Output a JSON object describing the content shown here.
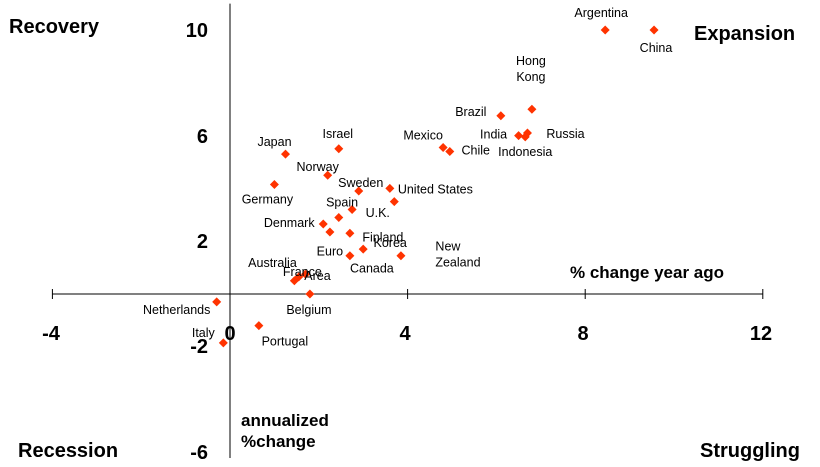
{
  "chart_data": {
    "type": "scatter",
    "xlim": [
      -4,
      12
    ],
    "ylim": [
      -6,
      11
    ],
    "x_ticks": [
      "-4",
      "0",
      "4",
      "8",
      "12"
    ],
    "y_ticks": [
      "10",
      "6",
      "2",
      "-2",
      "-6"
    ],
    "x_axis_title": "% change year ago",
    "y_axis_title": [
      "annualized",
      "%change"
    ],
    "quadrants": {
      "top_left": "Recovery",
      "top_right": "Expansion",
      "bottom_left": "Recession",
      "bottom_right": "Struggling"
    },
    "marker_color": "#ff3300",
    "highlight_label_color": "#1f2fa8",
    "points": [
      {
        "label": [
          "Argentina"
        ],
        "x": 8.45,
        "y": 10.0
      },
      {
        "label": [
          "China"
        ],
        "x": 9.55,
        "y": 10.0
      },
      {
        "label": [
          "Hong",
          "Kong"
        ],
        "x": 6.8,
        "y": 7.0
      },
      {
        "label": [
          "Brazil"
        ],
        "x": 6.1,
        "y": 6.75
      },
      {
        "label": [
          "Russia"
        ],
        "x": 6.7,
        "y": 6.1
      },
      {
        "label": [
          "India"
        ],
        "x": 6.5,
        "y": 6.0
      },
      {
        "label": [
          "Indonesia"
        ],
        "x": 6.65,
        "y": 5.95
      },
      {
        "label": [
          "Mexico"
        ],
        "x": 4.8,
        "y": 5.55
      },
      {
        "label": [
          "Chile"
        ],
        "x": 4.95,
        "y": 5.4
      },
      {
        "label": [
          "Japan"
        ],
        "x": 1.25,
        "y": 5.3
      },
      {
        "label": [
          "Israel"
        ],
        "x": 2.45,
        "y": 5.5
      },
      {
        "label": [
          "Norway"
        ],
        "x": 2.2,
        "y": 4.5
      },
      {
        "label": [
          "Germany"
        ],
        "x": 1.0,
        "y": 4.15
      },
      {
        "label": [
          "Sweden"
        ],
        "x": 2.9,
        "y": 3.9
      },
      {
        "label": [
          "United States"
        ],
        "x": 3.6,
        "y": 4.0,
        "highlight": true
      },
      {
        "label": [
          "U.K."
        ],
        "x": 3.7,
        "y": 3.5
      },
      {
        "label": [
          "Spain"
        ],
        "x": 2.75,
        "y": 3.2
      },
      {
        "label": [
          "Denmark"
        ],
        "x": 2.45,
        "y": 2.9
      },
      {
        "label": [
          "Denmark"
        ],
        "x": 2.1,
        "y": 2.65
      },
      {
        "label": [
          "Finland"
        ],
        "x": 2.25,
        "y": 2.35
      },
      {
        "label": [
          "Finland"
        ],
        "x": 2.7,
        "y": 2.3
      },
      {
        "label": [
          "Korea"
        ],
        "x": 3.0,
        "y": 1.7
      },
      {
        "label": [
          "Euro",
          "Area"
        ],
        "x": 2.7,
        "y": 1.45
      },
      {
        "label": [
          "New",
          "Zealand"
        ],
        "x": 3.85,
        "y": 1.45
      },
      {
        "label": [
          "Australia"
        ],
        "x": 1.7,
        "y": 0.75
      },
      {
        "label": [
          "Euro",
          "Area"
        ],
        "x": 1.55,
        "y": 0.65
      },
      {
        "label": [
          "France"
        ],
        "x": 1.45,
        "y": 0.5
      },
      {
        "label": [
          "Belgium"
        ],
        "x": 1.8,
        "y": 0.0
      },
      {
        "label": [
          "Netherlands"
        ],
        "x": -0.3,
        "y": -0.3
      },
      {
        "label": [
          "Portugal"
        ],
        "x": 0.65,
        "y": -1.2
      },
      {
        "label": [
          "Italy"
        ],
        "x": -0.15,
        "y": -1.85
      }
    ],
    "labels": [
      {
        "text": "Argentina",
        "x": 8.45,
        "y": 10.0
      },
      {
        "text": "China",
        "x": 9.55,
        "y": 10.0
      },
      {
        "text": "Hong",
        "x": 6.8,
        "y": 7.0
      },
      {
        "text": "Kong",
        "x": 6.8,
        "y": 7.0
      },
      {
        "text": "Brazil",
        "x": 6.1,
        "y": 6.75
      },
      {
        "text": "Russia",
        "x": 6.7,
        "y": 6.1
      },
      {
        "text": "India",
        "x": 6.5,
        "y": 6.0
      },
      {
        "text": "Indonesia",
        "x": 6.65,
        "y": 5.95
      },
      {
        "text": "Mexico",
        "x": 4.8,
        "y": 5.55
      },
      {
        "text": "Chile",
        "x": 4.95,
        "y": 5.4
      },
      {
        "text": "Japan",
        "x": 1.25,
        "y": 5.3
      },
      {
        "text": "Israel",
        "x": 2.45,
        "y": 5.5
      },
      {
        "text": "Norway",
        "x": 2.2,
        "y": 4.5
      },
      {
        "text": "Germany",
        "x": 1.0,
        "y": 4.15
      },
      {
        "text": "Sweden",
        "x": 2.9,
        "y": 3.9
      },
      {
        "text": "United States",
        "x": 3.6,
        "y": 4.0,
        "highlight": true
      },
      {
        "text": "Spain",
        "x": 2.75,
        "y": 3.2
      },
      {
        "text": "U.K.",
        "x": 2.9,
        "y": 3.1
      },
      {
        "text": "Denmark",
        "x": 2.1,
        "y": 2.65
      },
      {
        "text": "Finland",
        "x": 2.7,
        "y": 2.3
      },
      {
        "text": "Korea",
        "x": 3.0,
        "y": 1.7
      },
      {
        "text": "New",
        "x": 3.85,
        "y": 1.45
      },
      {
        "text": "Zealand",
        "x": 3.85,
        "y": 1.45
      },
      {
        "text": "Euro",
        "x": 2.7,
        "y": 1.45
      },
      {
        "text": "Australia",
        "x": 1.7,
        "y": 0.75
      },
      {
        "text": "Area",
        "x": 1.7,
        "y": 0.75
      },
      {
        "text": "Canada",
        "x": 2.7,
        "y": 1.45
      },
      {
        "text": "France",
        "x": 1.45,
        "y": 0.5
      },
      {
        "text": "Belgium",
        "x": 1.8,
        "y": 0.0
      },
      {
        "text": "Netherlands",
        "x": -0.3,
        "y": -0.3
      },
      {
        "text": "Portugal",
        "x": 0.65,
        "y": -1.2
      },
      {
        "text": "Italy",
        "x": -0.15,
        "y": -1.85
      }
    ]
  }
}
